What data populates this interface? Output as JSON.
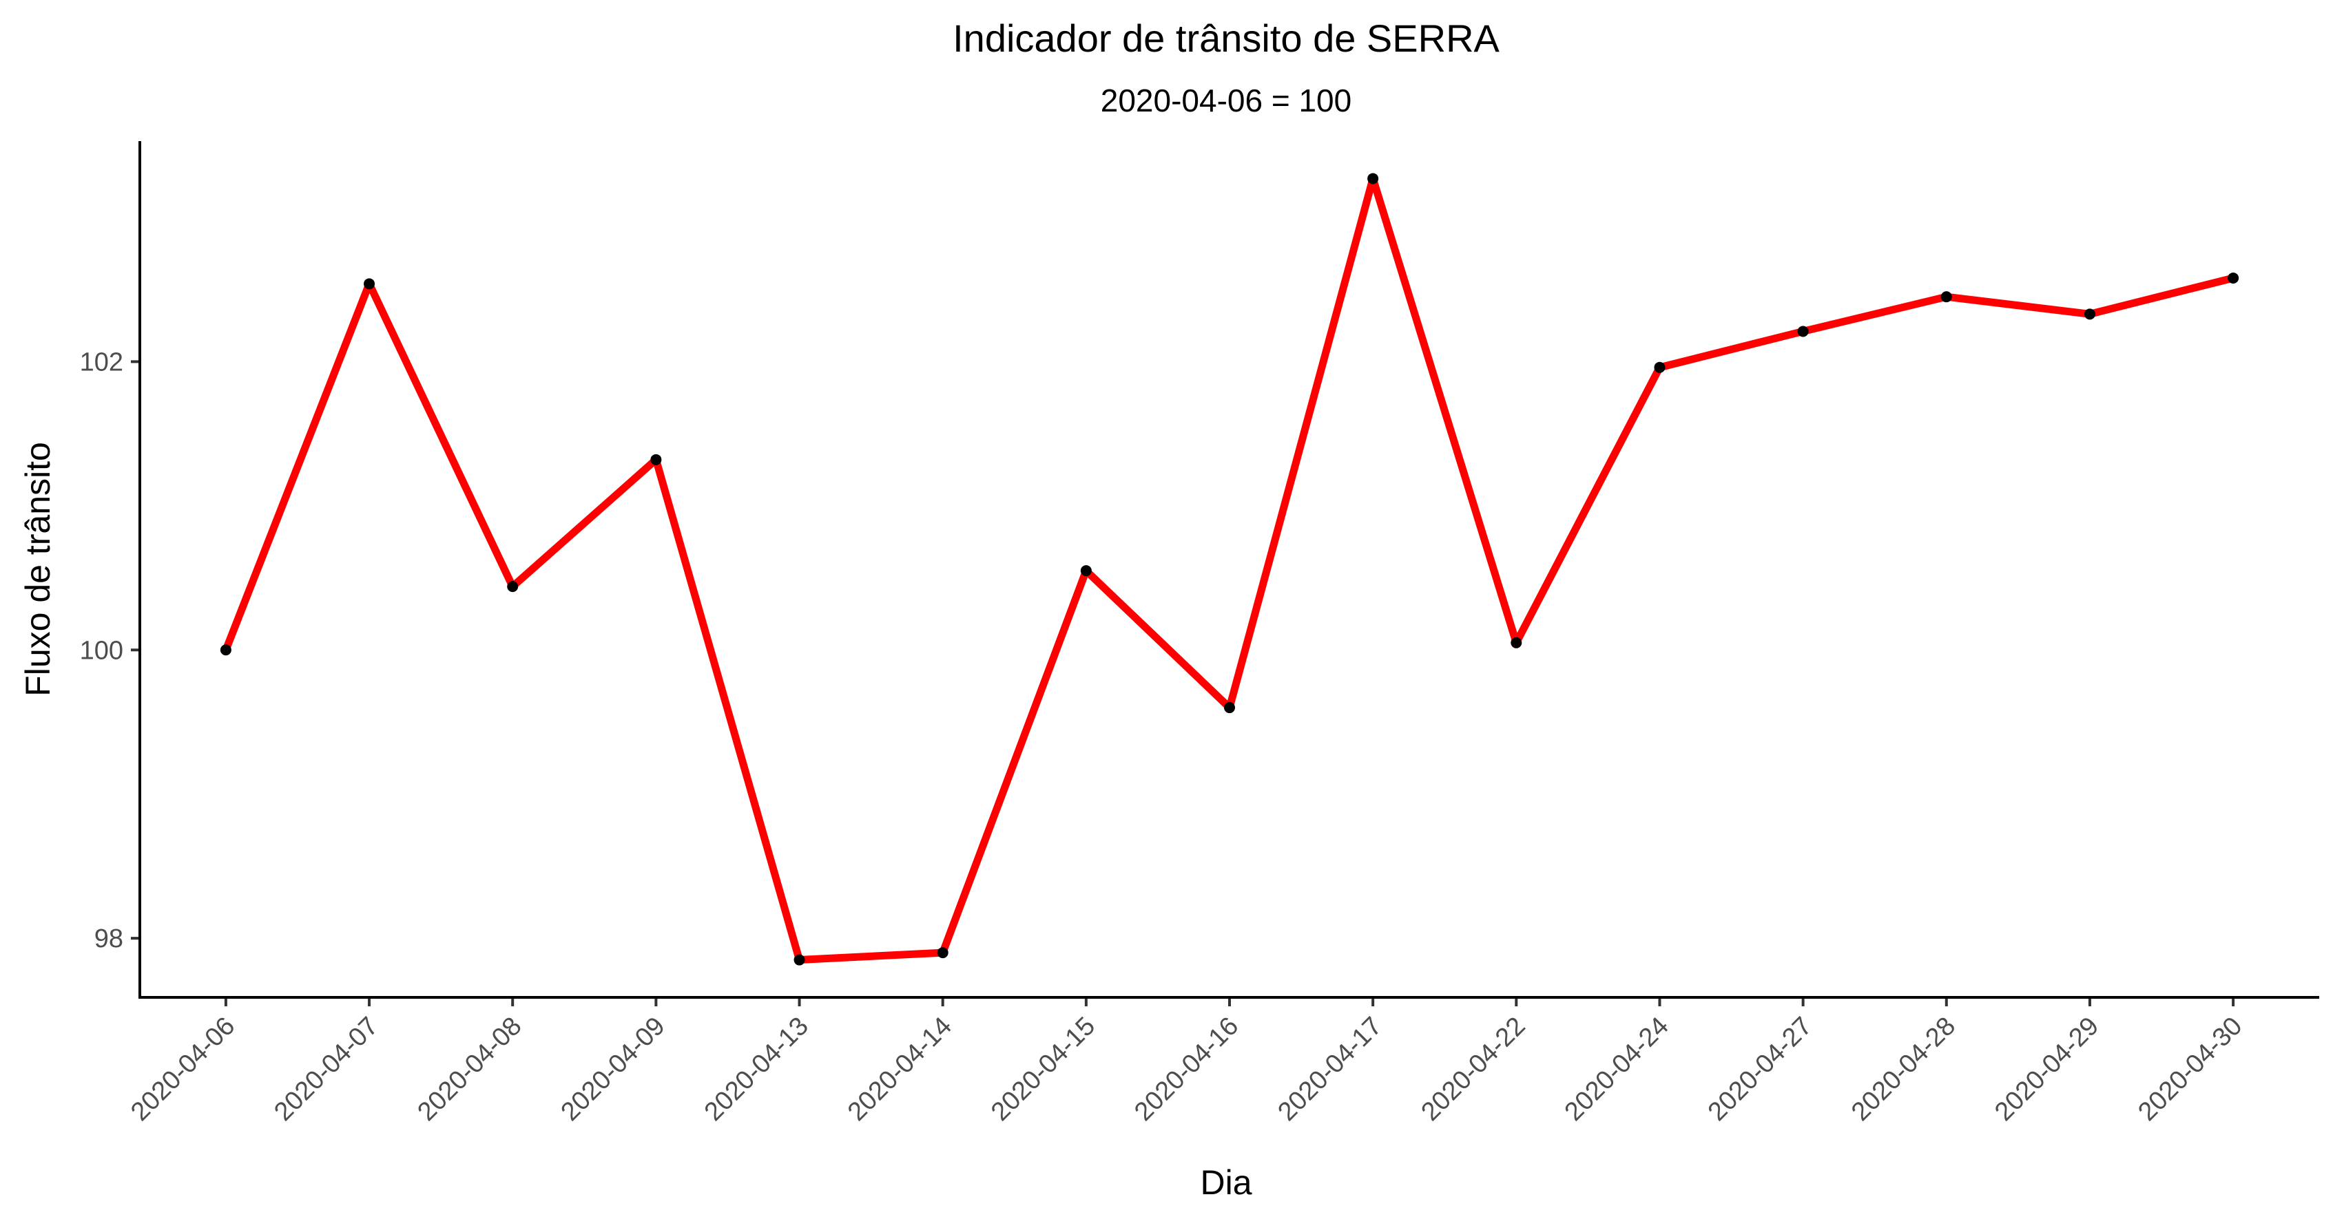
{
  "chart_data": {
    "type": "line",
    "title": "Indicador de trânsito de SERRA",
    "subtitle": "2020-04-06 = 100",
    "xlabel": "Dia",
    "ylabel": "Fluxo de trânsito",
    "categories": [
      "2020-04-06",
      "2020-04-07",
      "2020-04-08",
      "2020-04-09",
      "2020-04-13",
      "2020-04-14",
      "2020-04-15",
      "2020-04-16",
      "2020-04-17",
      "2020-04-22",
      "2020-04-24",
      "2020-04-27",
      "2020-04-28",
      "2020-04-29",
      "2020-04-30"
    ],
    "series": [
      {
        "values": [
          100.0,
          102.54,
          100.44,
          101.32,
          97.85,
          97.9,
          100.55,
          99.6,
          103.27,
          100.05,
          101.96,
          102.21,
          102.45,
          102.33,
          102.58
        ],
        "color": "#ff0000",
        "point_color": "#000000"
      }
    ],
    "ylim": [
      97.59,
      103.53
    ],
    "yticks": [
      98,
      100,
      102
    ],
    "grid": false,
    "legend": "none"
  }
}
